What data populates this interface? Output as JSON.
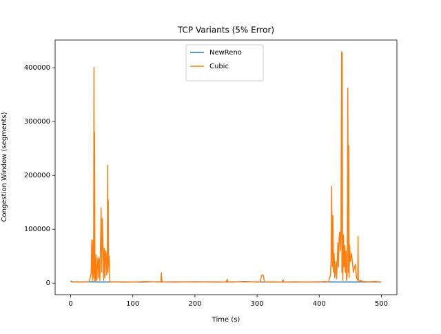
{
  "chart_data": {
    "type": "line",
    "title": "TCP Variants (5% Error)",
    "xlabel": "Time (s)",
    "ylabel": "Congestion Window (segments)",
    "x": [
      0,
      2,
      5,
      10,
      15,
      20,
      25,
      30,
      33,
      34,
      35,
      36,
      37,
      37.5,
      38,
      38.5,
      39,
      40,
      41,
      42,
      43,
      44,
      45,
      46,
      47,
      48,
      49,
      50,
      51,
      52,
      53,
      54,
      55,
      56,
      57,
      58,
      59,
      59.5,
      60,
      60.5,
      61,
      62,
      63,
      65,
      70,
      80,
      100,
      120,
      140,
      145,
      146,
      147,
      150,
      170,
      200,
      230,
      250,
      252,
      253,
      260,
      280,
      300,
      305,
      307,
      308,
      310,
      312,
      320,
      340,
      342,
      343,
      360,
      380,
      400,
      410,
      415,
      418,
      419,
      420,
      421,
      422,
      423,
      424,
      425,
      426,
      427,
      428,
      430,
      431,
      432,
      433,
      434,
      435,
      436,
      436.5,
      437,
      437.5,
      438,
      439,
      440,
      441,
      442,
      443,
      444,
      445,
      446,
      447,
      447.5,
      448,
      449,
      450,
      452,
      455,
      458,
      460,
      462,
      462.5,
      463,
      466,
      470,
      480,
      490,
      500
    ],
    "series": [
      {
        "name": "NewReno",
        "color": "#1f77b4",
        "values": [
          4000,
          3000,
          2000,
          2500,
          2000,
          2000,
          2500,
          2000,
          2500,
          2000,
          2000,
          3000,
          2000,
          2000,
          2000,
          2000,
          2000,
          2500,
          2000,
          2000,
          2000,
          2000,
          2000,
          2500,
          2000,
          2000,
          2000,
          2000,
          2000,
          2000,
          2000,
          2000,
          2000,
          2000,
          2000,
          2000,
          2000,
          2000,
          2000,
          2000,
          2000,
          2000,
          2000,
          2000,
          2500,
          2000,
          2000,
          2000,
          2500,
          2000,
          2000,
          2000,
          2000,
          2000,
          2500,
          2000,
          2000,
          2000,
          2000,
          2000,
          3000,
          2000,
          2000,
          2000,
          2000,
          2000,
          2000,
          2000,
          2000,
          2000,
          2000,
          2000,
          2000,
          2000,
          2000,
          2000,
          2000,
          2000,
          2000,
          2000,
          2000,
          2000,
          2000,
          2000,
          2000,
          2000,
          2000,
          2000,
          2000,
          2000,
          2000,
          2000,
          2000,
          2000,
          2000,
          2000,
          2000,
          2000,
          2000,
          2000,
          2000,
          2000,
          2000,
          2000,
          2000,
          2000,
          2000,
          2000,
          2000,
          2000,
          2000,
          2000,
          2000,
          2000,
          2000,
          2000,
          2000,
          2000,
          2000,
          2000,
          2000,
          2000,
          2000
        ]
      },
      {
        "name": "Cubic",
        "color": "#ff7f0e",
        "values": [
          3000,
          2000,
          2500,
          2000,
          2000,
          2500,
          2000,
          3000,
          18000,
          80000,
          5000,
          80000,
          10000,
          400000,
          5000,
          280000,
          50000,
          3000,
          52000,
          5000,
          30000,
          48000,
          10000,
          45000,
          5000,
          70000,
          140000,
          20000,
          120000,
          72000,
          5000,
          65000,
          10000,
          60000,
          55000,
          15000,
          50000,
          219000,
          20000,
          155000,
          30000,
          50000,
          2000,
          2500,
          2000,
          2500,
          2000,
          3000,
          2000,
          2500,
          19000,
          3000,
          2000,
          2500,
          2000,
          2500,
          2000,
          7000,
          2000,
          2500,
          2000,
          2500,
          2000,
          13000,
          15000,
          14000,
          2000,
          2500,
          2000,
          6000,
          2000,
          2500,
          2000,
          2500,
          3000,
          2000,
          15000,
          40000,
          180000,
          30000,
          125000,
          20000,
          55000,
          10000,
          20000,
          40000,
          8000,
          75000,
          30000,
          85000,
          95000,
          60000,
          100000,
          430000,
          20000,
          428000,
          80000,
          5000,
          90000,
          30000,
          70000,
          20000,
          60000,
          5000,
          15000,
          362000,
          20000,
          255000,
          10000,
          70000,
          40000,
          55000,
          20000,
          35000,
          10000,
          5000,
          87000,
          2000,
          5000,
          3000,
          2500,
          3000,
          2000
        ]
      }
    ],
    "xlim": [
      -25,
      525
    ],
    "ylim": [
      -21500,
      451500
    ],
    "xticks": [
      0,
      100,
      200,
      300,
      400,
      500
    ],
    "yticks": [
      0,
      100000,
      200000,
      300000,
      400000
    ],
    "legend": "upper center"
  }
}
